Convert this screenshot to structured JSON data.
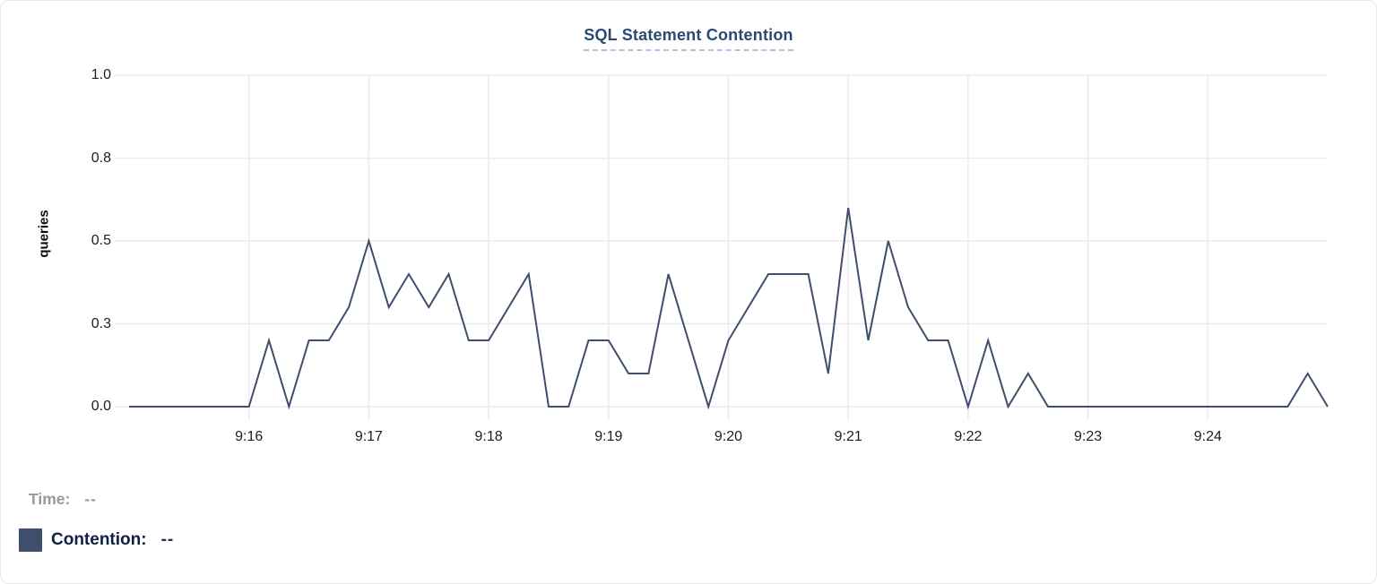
{
  "card": {
    "title": "SQL Statement Contention"
  },
  "axes": {
    "y_label": "queries"
  },
  "legend": {
    "time": {
      "label": "Time:",
      "value": "--"
    },
    "contention": {
      "label": "Contention:",
      "value": "--"
    }
  },
  "colors": {
    "title": "#2b4a73",
    "title_underline": "#b6bedc",
    "line": "#3e4e6c",
    "swatch": "#3e4e6c",
    "grid": "#ececec",
    "tick_text": "#1d1d1f",
    "time_text": "#97999f",
    "contention_text": "#101f48"
  },
  "chart_data": {
    "type": "line",
    "title": "SQL Statement Contention",
    "xlabel": "",
    "ylabel": "queries",
    "ylim": [
      0,
      1
    ],
    "grid": true,
    "legend_position": "bottom-left",
    "x": [
      "9:15:00",
      "9:15:10",
      "9:15:20",
      "9:15:30",
      "9:15:40",
      "9:15:50",
      "9:16:00",
      "9:16:10",
      "9:16:20",
      "9:16:30",
      "9:16:40",
      "9:16:50",
      "9:17:00",
      "9:17:10",
      "9:17:20",
      "9:17:30",
      "9:17:40",
      "9:17:50",
      "9:18:00",
      "9:18:10",
      "9:18:20",
      "9:18:30",
      "9:18:40",
      "9:18:50",
      "9:19:00",
      "9:19:10",
      "9:19:20",
      "9:19:30",
      "9:19:40",
      "9:19:50",
      "9:20:00",
      "9:20:10",
      "9:20:20",
      "9:20:30",
      "9:20:40",
      "9:20:50",
      "9:21:00",
      "9:21:10",
      "9:21:20",
      "9:21:30",
      "9:21:40",
      "9:21:50",
      "9:22:00",
      "9:22:10",
      "9:22:20",
      "9:22:30",
      "9:22:40",
      "9:22:50",
      "9:23:00",
      "9:23:10",
      "9:23:20",
      "9:23:30",
      "9:23:40",
      "9:23:50",
      "9:24:00",
      "9:24:10",
      "9:24:20",
      "9:24:30",
      "9:24:40",
      "9:24:50",
      "9:25:00"
    ],
    "series": [
      {
        "name": "Contention",
        "color": "#3e4e6c",
        "values": [
          0,
          0,
          0,
          0,
          0,
          0,
          0,
          0.2,
          0,
          0.2,
          0.2,
          0.3,
          0.5,
          0.3,
          0.4,
          0.3,
          0.4,
          0.2,
          0.2,
          0.3,
          0.4,
          0,
          0,
          0.2,
          0.2,
          0.1,
          0.1,
          0.4,
          0.2,
          0,
          0.2,
          0.3,
          0.4,
          0.4,
          0.4,
          0.1,
          0.6,
          0.2,
          0.5,
          0.3,
          0.2,
          0.2,
          0,
          0.2,
          0,
          0.1,
          0,
          0,
          0,
          0,
          0,
          0,
          0,
          0,
          0,
          0,
          0,
          0,
          0,
          0.1,
          0
        ]
      }
    ],
    "y_ticks": [
      {
        "label": "0.0",
        "value": 0
      },
      {
        "label": "0.3",
        "value": 0.25
      },
      {
        "label": "0.5",
        "value": 0.5
      },
      {
        "label": "0.8",
        "value": 0.75
      },
      {
        "label": "1.0",
        "value": 1
      }
    ],
    "x_ticks": [
      {
        "label": "9:16",
        "index": 6
      },
      {
        "label": "9:17",
        "index": 12
      },
      {
        "label": "9:18",
        "index": 18
      },
      {
        "label": "9:19",
        "index": 24
      },
      {
        "label": "9:20",
        "index": 30
      },
      {
        "label": "9:21",
        "index": 36
      },
      {
        "label": "9:22",
        "index": 42
      },
      {
        "label": "9:23",
        "index": 48
      },
      {
        "label": "9:24",
        "index": 54
      }
    ]
  }
}
